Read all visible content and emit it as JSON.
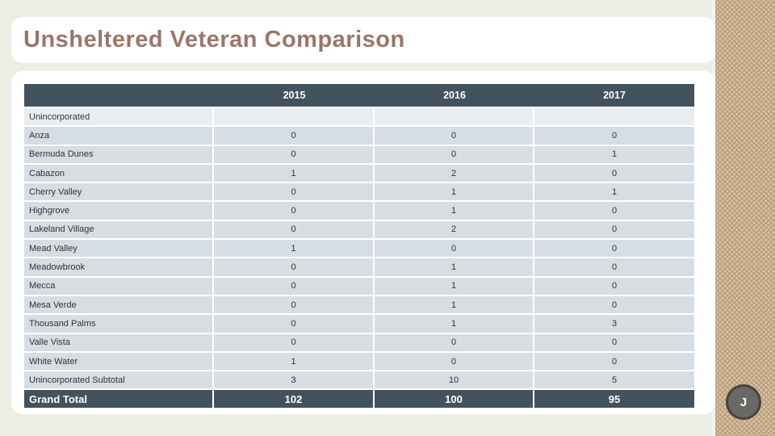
{
  "slide": {
    "title": "Unsheltered Veteran Comparison",
    "footer_badge": "J"
  },
  "table": {
    "columns": [
      "2015",
      "2016",
      "2017"
    ],
    "rows": [
      {
        "label": "Unincorporated",
        "values": [
          "",
          "",
          ""
        ],
        "type": "group"
      },
      {
        "label": "Anza",
        "values": [
          "0",
          "0",
          "0"
        ],
        "type": "data"
      },
      {
        "label": "Bermuda Dunes",
        "values": [
          "0",
          "0",
          "1"
        ],
        "type": "data"
      },
      {
        "label": "Cabazon",
        "values": [
          "1",
          "2",
          "0"
        ],
        "type": "data"
      },
      {
        "label": "Cherry Valley",
        "values": [
          "0",
          "1",
          "1"
        ],
        "type": "data"
      },
      {
        "label": "Highgrove",
        "values": [
          "0",
          "1",
          "0"
        ],
        "type": "data"
      },
      {
        "label": "Lakeland Village",
        "values": [
          "0",
          "2",
          "0"
        ],
        "type": "data"
      },
      {
        "label": "Mead Valley",
        "values": [
          "1",
          "0",
          "0"
        ],
        "type": "data"
      },
      {
        "label": "Meadowbrook",
        "values": [
          "0",
          "1",
          "0"
        ],
        "type": "data"
      },
      {
        "label": "Mecca",
        "values": [
          "0",
          "1",
          "0"
        ],
        "type": "data"
      },
      {
        "label": "Mesa Verde",
        "values": [
          "0",
          "1",
          "0"
        ],
        "type": "data"
      },
      {
        "label": "Thousand Palms",
        "values": [
          "0",
          "1",
          "3"
        ],
        "type": "data"
      },
      {
        "label": "Valle Vista",
        "values": [
          "0",
          "0",
          "0"
        ],
        "type": "data"
      },
      {
        "label": "White Water",
        "values": [
          "1",
          "0",
          "0"
        ],
        "type": "data"
      },
      {
        "label": "Unincorporated Subtotal",
        "values": [
          "3",
          "10",
          "5"
        ],
        "type": "data"
      },
      {
        "label": "Grand Total",
        "values": [
          "102",
          "100",
          "95"
        ],
        "type": "grand"
      }
    ]
  },
  "colors": {
    "slide_background": "#ebeee2",
    "card_background": "#ffffff",
    "title_text": "#9b7668",
    "table_header_background": "#42525e",
    "table_header_text": "#ffffff",
    "row_background": "#d6dde3",
    "group_row_background": "#e9edf0",
    "grand_total_background": "#42525e",
    "side_strip_base": "#bfa283",
    "side_strip_dots": "#dacaa9",
    "badge_fill": "#6b6965",
    "badge_border": "#45443d"
  }
}
